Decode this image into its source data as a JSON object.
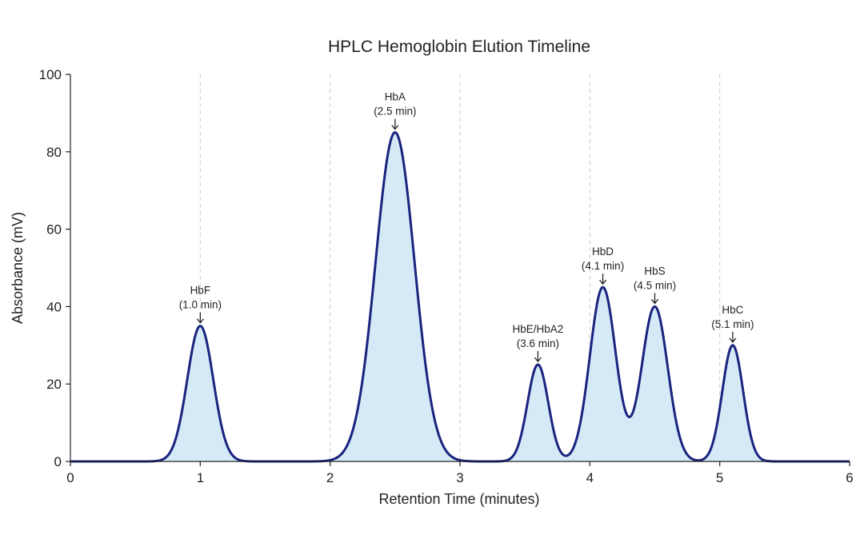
{
  "chart_data": {
    "type": "area",
    "title": "HPLC Hemoglobin Elution Timeline",
    "xlabel": "Retention Time (minutes)",
    "ylabel": "Absorbance (mV)",
    "xlim": [
      0,
      6
    ],
    "ylim": [
      0,
      100
    ],
    "x_ticks": [
      0,
      1,
      2,
      3,
      4,
      5,
      6
    ],
    "y_ticks": [
      0,
      20,
      40,
      60,
      80,
      100
    ],
    "vertical_gridlines_at": [
      1,
      2,
      3,
      4,
      5
    ],
    "grid": "vertical dashed",
    "colors": {
      "line": "#1a237e",
      "fill": "#d4ebf7",
      "grid": "#cccccc",
      "axis": "#222222"
    },
    "peaks": [
      {
        "name": "HbF",
        "label": "(1.0 min)",
        "x": 1.0,
        "y": 35,
        "width": 0.1
      },
      {
        "name": "HbA",
        "label": "(2.5 min)",
        "x": 2.5,
        "y": 85,
        "width": 0.15
      },
      {
        "name": "HbE/HbA2",
        "label": "(3.6 min)",
        "x": 3.6,
        "y": 25,
        "width": 0.08
      },
      {
        "name": "HbD",
        "label": "(4.1 min)",
        "x": 4.1,
        "y": 45,
        "width": 0.1
      },
      {
        "name": "HbS",
        "label": "(4.5 min)",
        "x": 4.5,
        "y": 40,
        "width": 0.1
      },
      {
        "name": "HbC",
        "label": "(5.1 min)",
        "x": 5.1,
        "y": 30,
        "width": 0.08
      }
    ]
  }
}
